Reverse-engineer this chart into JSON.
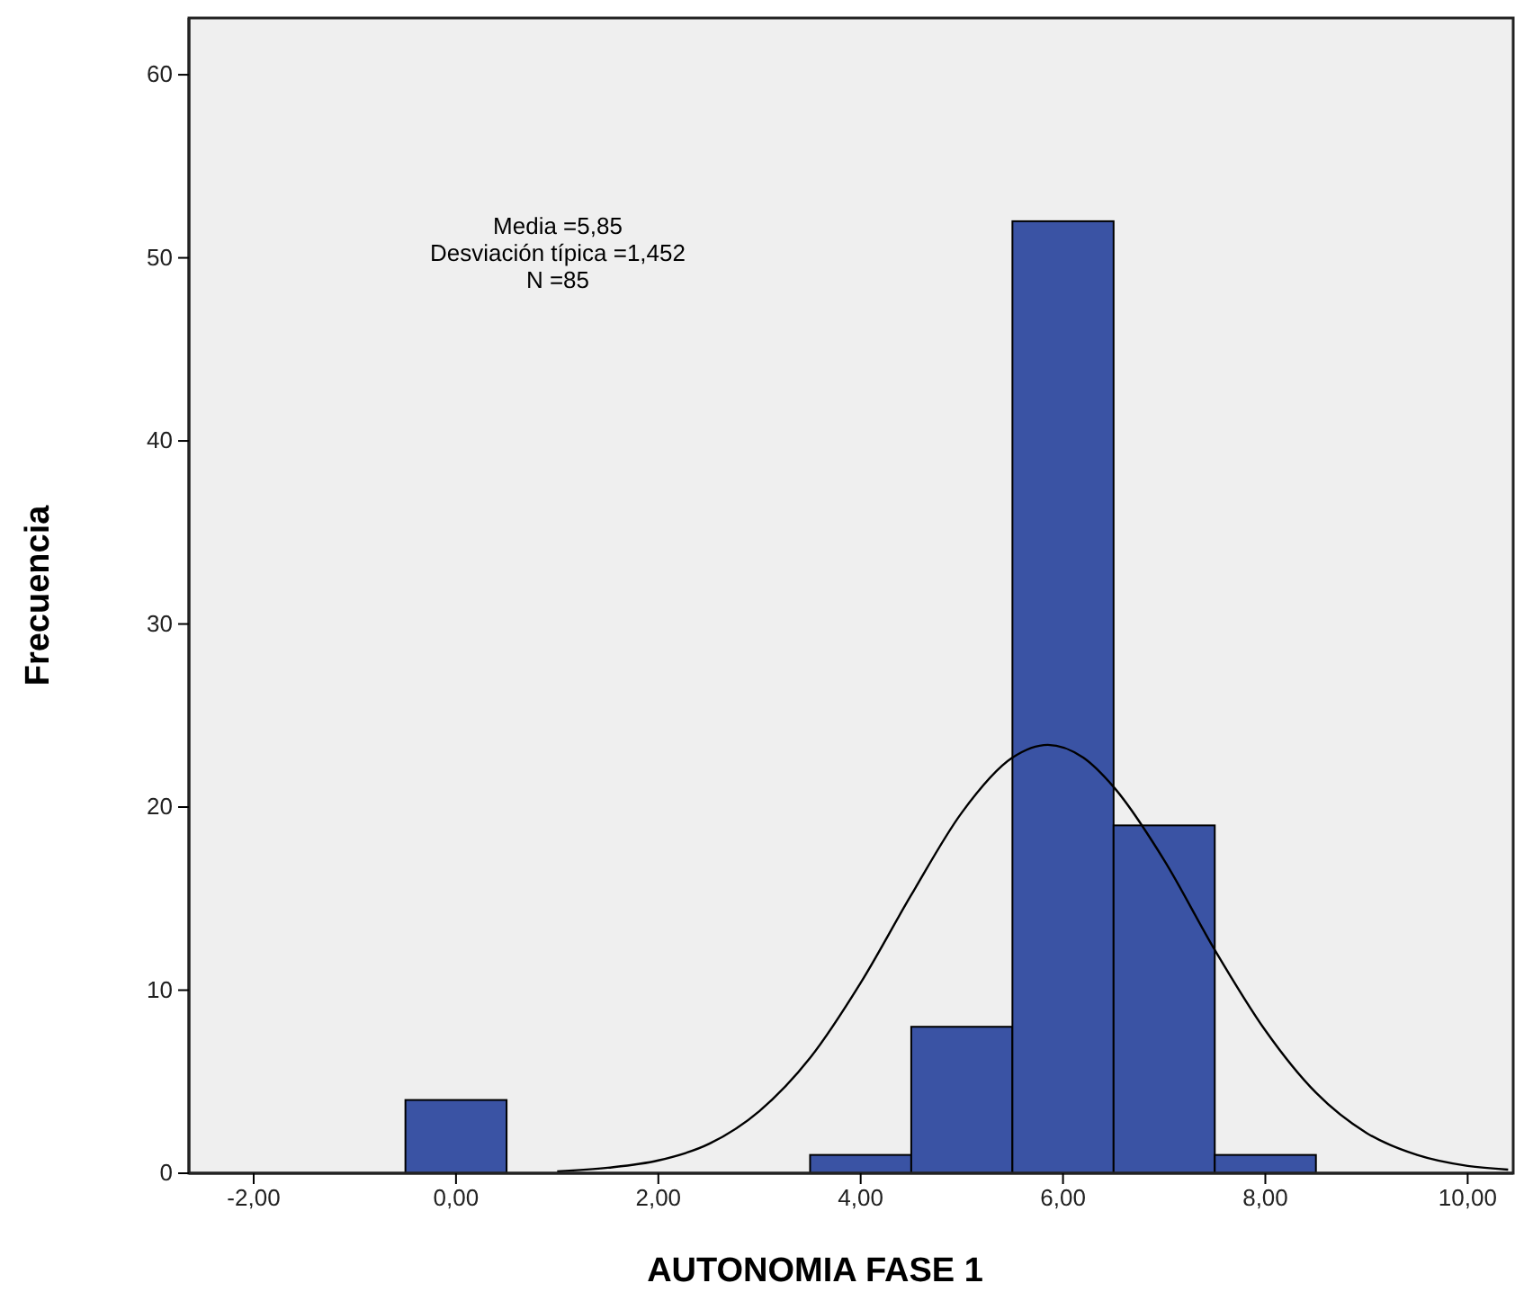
{
  "chart_data": {
    "type": "histogram",
    "xlabel": "AUTONOMIA FASE 1",
    "ylabel": "Frecuencia",
    "color": "#3a53a4",
    "bins": [
      -0.5,
      0.5,
      1.5,
      2.5,
      3.5,
      4.5,
      5.5,
      6.5,
      7.5,
      8.5
    ],
    "values": [
      4,
      0,
      0,
      0,
      1,
      8,
      52,
      19,
      1
    ],
    "xlim": [
      -2.64,
      10.45
    ],
    "ylim": [
      0,
      63.1
    ],
    "xticks": [
      {
        "value": -2,
        "label": "-2,00"
      },
      {
        "value": 0,
        "label": "0,00"
      },
      {
        "value": 2,
        "label": "2,00"
      },
      {
        "value": 4,
        "label": "4,00"
      },
      {
        "value": 6,
        "label": "6,00"
      },
      {
        "value": 8,
        "label": "8,00"
      },
      {
        "value": 10,
        "label": "10,00"
      }
    ],
    "yticks": [
      0,
      10,
      20,
      30,
      40,
      50,
      60
    ],
    "series": [
      {
        "type": "line",
        "color": "#000000",
        "x": [
          1,
          1.5,
          2,
          2.5,
          3,
          3.5,
          4,
          4.5,
          5,
          5.5,
          5.85,
          6.2,
          6.5,
          7,
          7.5,
          8,
          8.5,
          9,
          9.5,
          10,
          10.4
        ],
        "values": [
          0.1,
          0.3,
          0.7,
          1.6,
          3.4,
          6.3,
          10.4,
          15.2,
          19.7,
          22.7,
          23.4,
          22.7,
          21.1,
          17.1,
          12.2,
          7.8,
          4.4,
          2.2,
          1.0,
          0.4,
          0.2
        ]
      }
    ],
    "annotations": [
      "Media =5,85",
      "Desviación típica =1,452",
      "N =85"
    ],
    "grid": false
  }
}
